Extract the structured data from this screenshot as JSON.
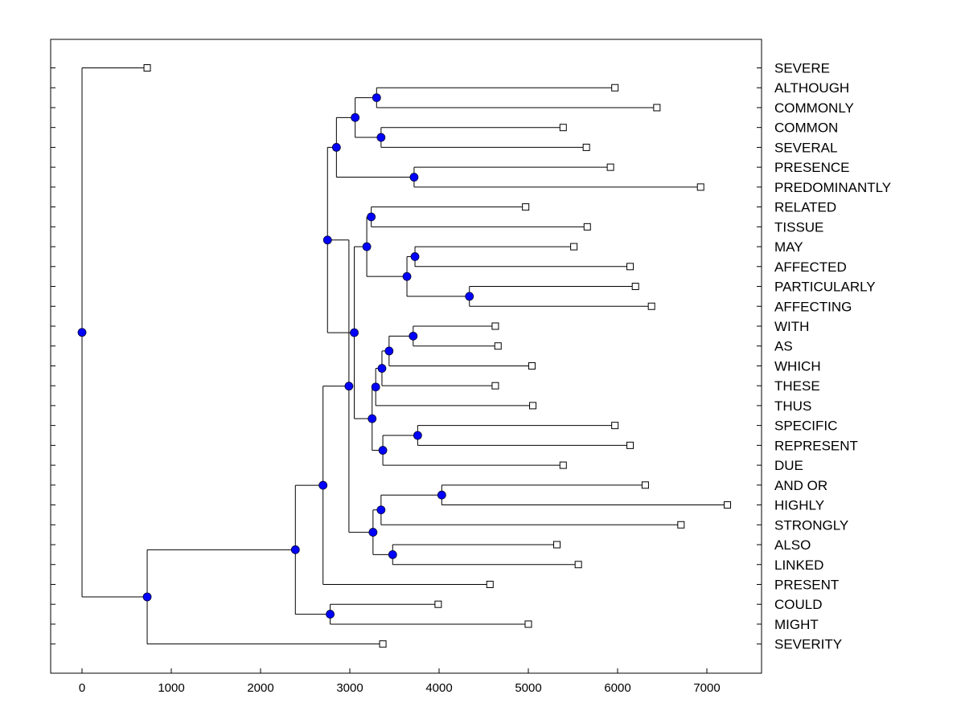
{
  "chart_data": {
    "type": "dendrogram",
    "title": "",
    "xlabel": "",
    "ylabel": "",
    "xlim": [
      -350,
      7550
    ],
    "xticks": [
      0,
      1000,
      2000,
      3000,
      4000,
      5000,
      6000,
      7000
    ],
    "xtick_labels": [
      "0",
      "1000",
      "2000",
      "3000",
      "4000",
      "5000",
      "6000",
      "7000"
    ],
    "colors": {
      "node": "#0000ff",
      "line": "#000000",
      "leaf": "#ffffff"
    },
    "leaves": [
      {
        "label": "SEVERE",
        "x": 730
      },
      {
        "label": "ALTHOUGH",
        "x": 5970
      },
      {
        "label": "COMMONLY",
        "x": 6440
      },
      {
        "label": "COMMON",
        "x": 5390
      },
      {
        "label": "SEVERAL",
        "x": 5650
      },
      {
        "label": "PRESENCE",
        "x": 5920
      },
      {
        "label": "PREDOMINANTLY",
        "x": 6930
      },
      {
        "label": "RELATED",
        "x": 4970
      },
      {
        "label": "TISSUE",
        "x": 5660
      },
      {
        "label": "MAY",
        "x": 5510
      },
      {
        "label": "AFFECTED",
        "x": 6140
      },
      {
        "label": "PARTICULARLY",
        "x": 6200
      },
      {
        "label": "AFFECTING",
        "x": 6380
      },
      {
        "label": "WITH",
        "x": 4630
      },
      {
        "label": "AS",
        "x": 4660
      },
      {
        "label": "WHICH",
        "x": 5040
      },
      {
        "label": "THESE",
        "x": 4630
      },
      {
        "label": "THUS",
        "x": 5050
      },
      {
        "label": "SPECIFIC",
        "x": 5970
      },
      {
        "label": "REPRESENT",
        "x": 6140
      },
      {
        "label": "DUE",
        "x": 5390
      },
      {
        "label": "AND OR",
        "x": 6310
      },
      {
        "label": "HIGHLY",
        "x": 7230
      },
      {
        "label": "STRONGLY",
        "x": 6710
      },
      {
        "label": "ALSO",
        "x": 5320
      },
      {
        "label": "LINKED",
        "x": 5560
      },
      {
        "label": "PRESENT",
        "x": 4570
      },
      {
        "label": "COULD",
        "x": 3990
      },
      {
        "label": "MIGHT",
        "x": 5000
      },
      {
        "label": "SEVERITY",
        "x": 3370
      }
    ],
    "nodes": [
      {
        "id": "n1",
        "x": 3300,
        "children": [
          "L1",
          "L2"
        ]
      },
      {
        "id": "n2",
        "x": 3350,
        "children": [
          "L3",
          "L4"
        ]
      },
      {
        "id": "n3",
        "x": 3060,
        "children": [
          "n1",
          "n2"
        ]
      },
      {
        "id": "n4",
        "x": 3720,
        "children": [
          "L5",
          "L6"
        ]
      },
      {
        "id": "n5",
        "x": 2850,
        "children": [
          "n3",
          "n4"
        ]
      },
      {
        "id": "n6",
        "x": 3240,
        "children": [
          "L7",
          "L8"
        ]
      },
      {
        "id": "n7",
        "x": 3730,
        "children": [
          "L9",
          "L10"
        ]
      },
      {
        "id": "n8",
        "x": 4340,
        "children": [
          "L11",
          "L12"
        ]
      },
      {
        "id": "n9",
        "x": 3640,
        "children": [
          "n7",
          "n8"
        ]
      },
      {
        "id": "n10",
        "x": 3190,
        "children": [
          "n6",
          "n9"
        ]
      },
      {
        "id": "n11",
        "x": 3710,
        "children": [
          "L13",
          "L14"
        ]
      },
      {
        "id": "n12",
        "x": 3440,
        "children": [
          "n11",
          "L15"
        ]
      },
      {
        "id": "n13",
        "x": 3360,
        "children": [
          "n12",
          "L16"
        ]
      },
      {
        "id": "n14",
        "x": 3290,
        "children": [
          "n13",
          "L17"
        ]
      },
      {
        "id": "n15",
        "x": 3760,
        "children": [
          "L18",
          "L19"
        ]
      },
      {
        "id": "n16",
        "x": 3370,
        "children": [
          "n15",
          "L20"
        ]
      },
      {
        "id": "n17",
        "x": 3250,
        "children": [
          "n14",
          "n16"
        ]
      },
      {
        "id": "n18",
        "x": 3050,
        "children": [
          "n10",
          "n17"
        ]
      },
      {
        "id": "n19",
        "x": 2750,
        "children": [
          "n5",
          "n18"
        ]
      },
      {
        "id": "n20",
        "x": 4030,
        "children": [
          "L21",
          "L22"
        ]
      },
      {
        "id": "n21",
        "x": 3350,
        "children": [
          "n20",
          "L23"
        ]
      },
      {
        "id": "n22",
        "x": 3480,
        "children": [
          "L24",
          "L25"
        ]
      },
      {
        "id": "n23",
        "x": 3260,
        "children": [
          "n21",
          "n22"
        ]
      },
      {
        "id": "n24",
        "x": 2990,
        "children": [
          "n19",
          "n23"
        ]
      },
      {
        "id": "n25",
        "x": 2700,
        "children": [
          "n24",
          "L26"
        ]
      },
      {
        "id": "n26",
        "x": 2780,
        "children": [
          "L27",
          "L28"
        ]
      },
      {
        "id": "n27",
        "x": 2390,
        "children": [
          "n25",
          "n26"
        ]
      },
      {
        "id": "n28",
        "x": 730,
        "children": [
          "n27",
          "L29"
        ]
      },
      {
        "id": "n29",
        "x": 0,
        "children": [
          "L0",
          "n28"
        ]
      }
    ]
  }
}
